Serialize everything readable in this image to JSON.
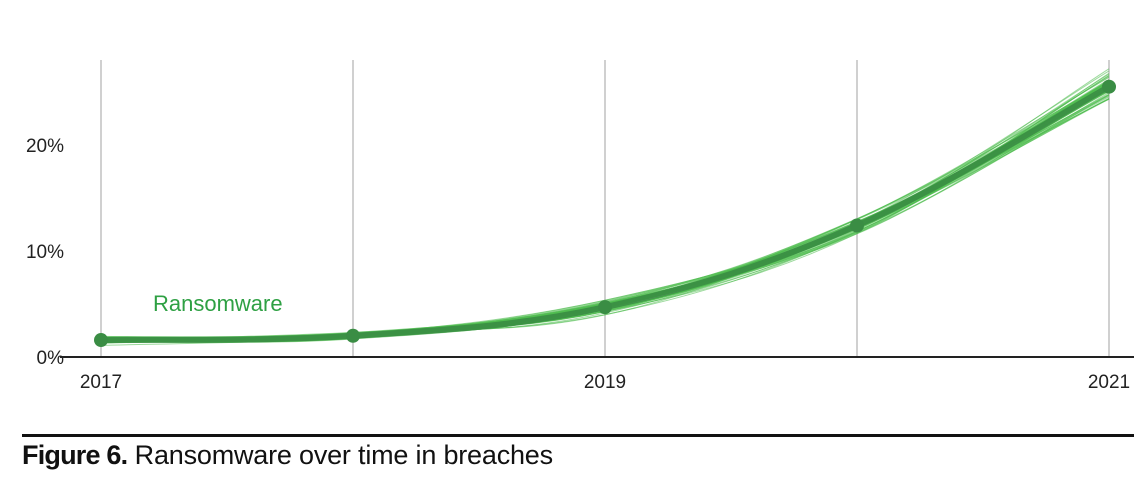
{
  "figure": {
    "number": "Figure 6.",
    "caption": "Ransomware over time in breaches"
  },
  "chart_data": {
    "type": "line",
    "title": "",
    "xlabel": "",
    "ylabel": "",
    "x": [
      2017,
      2018,
      2019,
      2020,
      2021
    ],
    "x_tick_labels": [
      {
        "value": 2017,
        "label": "2017"
      },
      {
        "value": 2019,
        "label": "2019"
      },
      {
        "value": 2021,
        "label": "2021"
      }
    ],
    "y_ticks": [
      {
        "value": 0,
        "label": "0%"
      },
      {
        "value": 10,
        "label": "10%"
      },
      {
        "value": 20,
        "label": "20%"
      }
    ],
    "ylim": [
      0,
      28
    ],
    "xlim": [
      2017,
      2021
    ],
    "grid": "vertical",
    "series": [
      {
        "name": "Ransomware",
        "values": [
          1.6,
          2.0,
          4.7,
          12.4,
          25.5
        ],
        "color": "#2ea043",
        "point_color": "#3a8d44",
        "uncertainty_color": "#4cbb4c",
        "uncertainty_half_width": [
          0.4,
          0.4,
          0.8,
          1.0,
          1.8
        ]
      }
    ]
  }
}
